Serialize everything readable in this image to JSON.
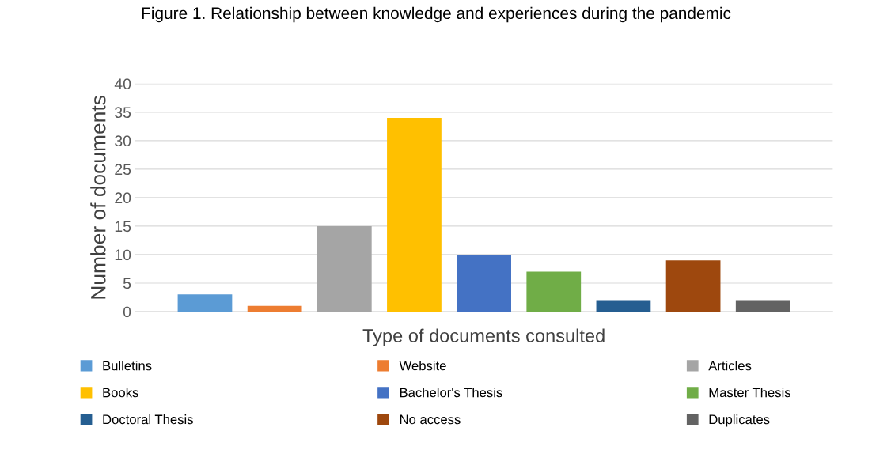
{
  "chart_data": {
    "type": "bar",
    "title": "Figure 1. Relationship between knowledge and experiences during the pandemic",
    "xlabel": "Type of documents consulted",
    "ylabel": "Number of documents",
    "categories": [
      null,
      null,
      null,
      null,
      null,
      null,
      null,
      null,
      null
    ],
    "series": [
      {
        "name": "Bulletins",
        "color": "#5b9bd5",
        "values": [
          3,
          null,
          null,
          null,
          null,
          null,
          null,
          null,
          null
        ]
      },
      {
        "name": "Website",
        "color": "#ed7d31",
        "values": [
          null,
          1,
          null,
          null,
          null,
          null,
          null,
          null,
          null
        ]
      },
      {
        "name": "Articles",
        "color": "#a5a5a5",
        "values": [
          null,
          null,
          15,
          null,
          null,
          null,
          null,
          null,
          null
        ]
      },
      {
        "name": "Books",
        "color": "#ffc000",
        "values": [
          null,
          null,
          null,
          34,
          null,
          null,
          null,
          null,
          null
        ]
      },
      {
        "name": "Bachelor's Thesis",
        "color": "#4472c4",
        "values": [
          null,
          null,
          null,
          null,
          10,
          null,
          null,
          null,
          null
        ]
      },
      {
        "name": "Master Thesis",
        "color": "#70ad47",
        "values": [
          null,
          null,
          null,
          null,
          null,
          7,
          null,
          null,
          null
        ]
      },
      {
        "name": "Doctoral Thesis",
        "color": "#255e91",
        "values": [
          null,
          null,
          null,
          null,
          null,
          null,
          2,
          null,
          null
        ]
      },
      {
        "name": "No access",
        "color": "#9e480e",
        "values": [
          null,
          null,
          null,
          null,
          null,
          null,
          null,
          9,
          null
        ]
      },
      {
        "name": "Duplicates",
        "color": "#636363",
        "values": [
          null,
          null,
          null,
          null,
          null,
          null,
          null,
          null,
          2
        ]
      }
    ],
    "ylim": [
      0,
      40
    ],
    "yticks": [
      0,
      5,
      10,
      15,
      20,
      25,
      30,
      35,
      40
    ],
    "grid": "y",
    "legend": "bottom"
  }
}
